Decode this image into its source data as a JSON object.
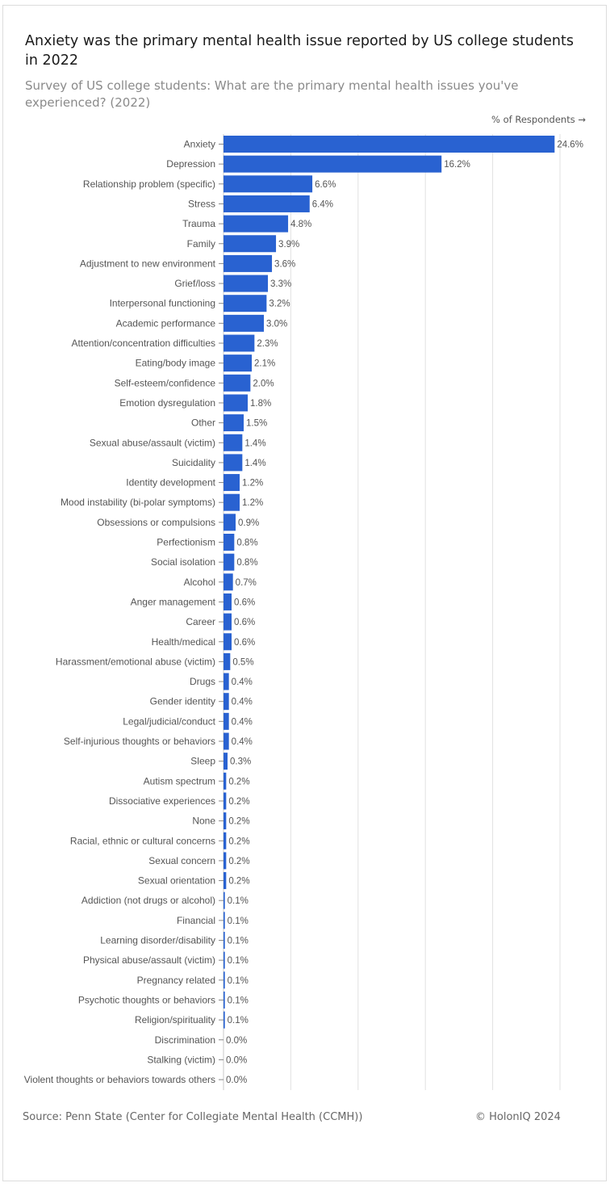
{
  "title": "Anxiety was the primary mental health issue reported by US college students in 2022",
  "subtitle": "Survey of US college students: What are the primary mental health issues you've experienced? (2022)",
  "axis_caption": "% of Respondents →",
  "source": "Source: Penn State (Center for Collegiate Mental Health (CCMH))",
  "copyright": "© HolonIQ 2024",
  "colors": {
    "bar": "#2962d1",
    "grid": "#e2e2e2",
    "label": "#555555",
    "value": "#555555"
  },
  "chart_data": {
    "type": "bar",
    "orientation": "horizontal",
    "categories": [
      "Anxiety",
      "Depression",
      "Relationship problem (specific)",
      "Stress",
      "Trauma",
      "Family",
      "Adjustment to new environment",
      "Grief/loss",
      "Interpersonal functioning",
      "Academic performance",
      "Attention/concentration difficulties",
      "Eating/body image",
      "Self-esteem/confidence",
      "Emotion dysregulation",
      "Other",
      "Sexual abuse/assault (victim)",
      "Suicidality",
      "Identity development",
      "Mood instability (bi-polar symptoms)",
      "Obsessions or compulsions",
      "Perfectionism",
      "Social isolation",
      "Alcohol",
      "Anger management",
      "Career",
      "Health/medical",
      "Harassment/emotional abuse (victim)",
      "Drugs",
      "Gender identity",
      "Legal/judicial/conduct",
      "Self-injurious thoughts or behaviors",
      "Sleep",
      "Autism spectrum",
      "Dissociative experiences",
      "None",
      "Racial, ethnic or cultural concerns",
      "Sexual concern",
      "Sexual orientation",
      "Addiction (not drugs or alcohol)",
      "Financial",
      "Learning disorder/disability",
      "Physical abuse/assault (victim)",
      "Pregnancy related",
      "Psychotic thoughts or behaviors",
      "Religion/spirituality",
      "Discrimination",
      "Stalking (victim)",
      "Violent thoughts or behaviors towards others"
    ],
    "values": [
      24.6,
      16.2,
      6.6,
      6.4,
      4.8,
      3.9,
      3.6,
      3.3,
      3.2,
      3.0,
      2.3,
      2.1,
      2.0,
      1.8,
      1.5,
      1.4,
      1.4,
      1.2,
      1.2,
      0.9,
      0.8,
      0.8,
      0.7,
      0.6,
      0.6,
      0.6,
      0.5,
      0.4,
      0.4,
      0.4,
      0.4,
      0.3,
      0.2,
      0.2,
      0.2,
      0.2,
      0.2,
      0.2,
      0.1,
      0.1,
      0.1,
      0.1,
      0.1,
      0.1,
      0.1,
      0.0,
      0.0,
      0.0
    ],
    "value_labels": [
      "24.6%",
      "16.2%",
      "6.6%",
      "6.4%",
      "4.8%",
      "3.9%",
      "3.6%",
      "3.3%",
      "3.2%",
      "3.0%",
      "2.3%",
      "2.1%",
      "2.0%",
      "1.8%",
      "1.5%",
      "1.4%",
      "1.4%",
      "1.2%",
      "1.2%",
      "0.9%",
      "0.8%",
      "0.8%",
      "0.7%",
      "0.6%",
      "0.6%",
      "0.6%",
      "0.5%",
      "0.4%",
      "0.4%",
      "0.4%",
      "0.4%",
      "0.3%",
      "0.2%",
      "0.2%",
      "0.2%",
      "0.2%",
      "0.2%",
      "0.2%",
      "0.1%",
      "0.1%",
      "0.1%",
      "0.1%",
      "0.1%",
      "0.1%",
      "0.1%",
      "0.0%",
      "0.0%",
      "0.0%"
    ],
    "xlim": [
      0,
      25
    ],
    "x_gridlines": [
      0,
      5,
      10,
      15,
      20,
      25
    ],
    "grid": true,
    "legend": false
  }
}
